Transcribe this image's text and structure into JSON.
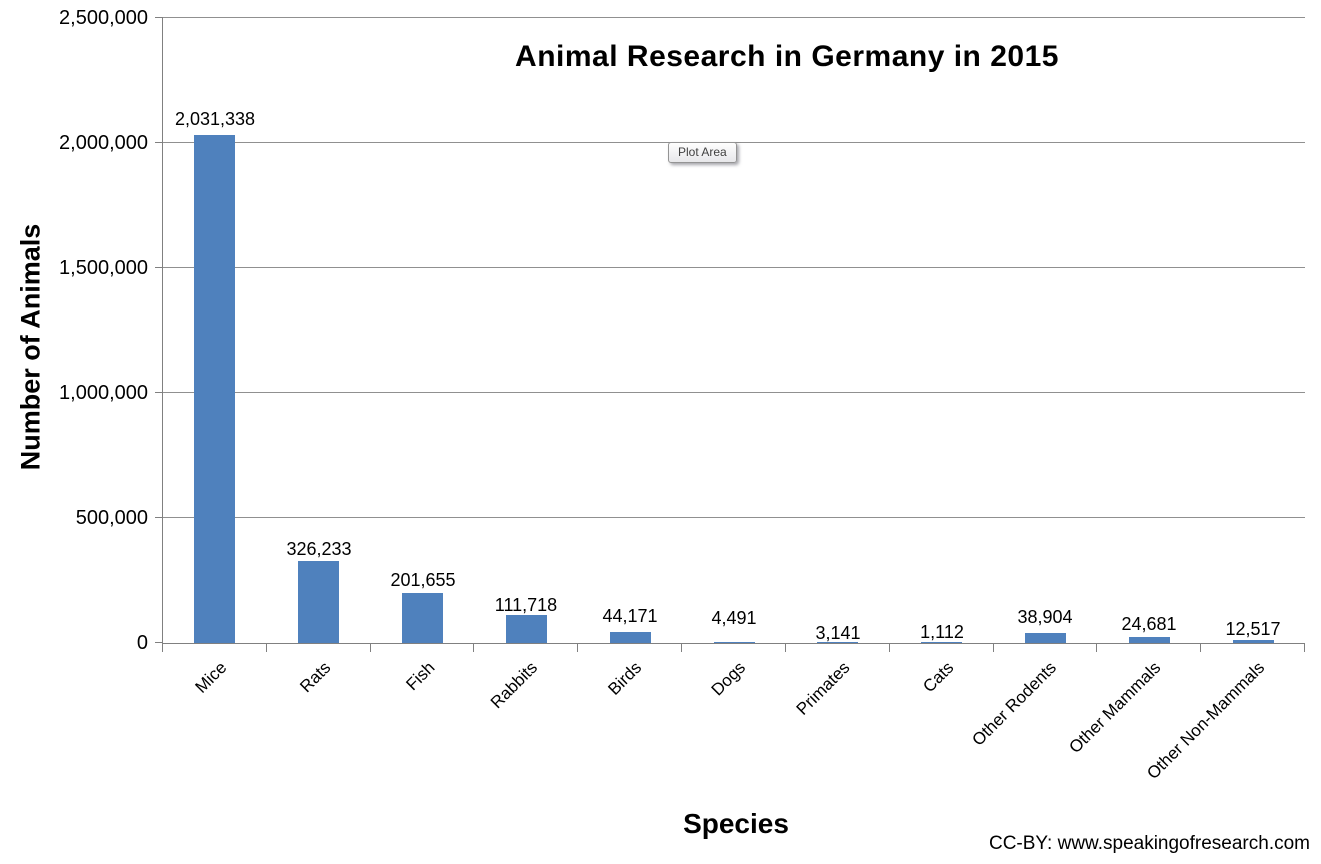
{
  "chart": {
    "plot_area_tooltip": "Plot Area",
    "credit": "CC-BY: www.speakingofresearch.com"
  },
  "chart_data": {
    "type": "bar",
    "title": "Animal Research in Germany in 2015",
    "xlabel": "Species",
    "ylabel": "Number of Animals",
    "categories": [
      "Mice",
      "Rats",
      "Fish",
      "Rabbits",
      "Birds",
      "Dogs",
      "Primates",
      "Cats",
      "Other Rodents",
      "Other Mammals",
      "Other Non-Mammals"
    ],
    "values": [
      2031338,
      326233,
      201655,
      111718,
      44171,
      4491,
      3141,
      1112,
      38904,
      24681,
      12517
    ],
    "value_labels": [
      "2,031,338",
      "326,233",
      "201,655",
      "111,718",
      "44,171",
      "4,491",
      "3,141",
      "1,112",
      "38,904",
      "24,681",
      "12,517"
    ],
    "ylim": [
      0,
      2500000
    ],
    "ytick_interval": 500000,
    "ytick_labels": [
      "0",
      "500,000",
      "1,000,000",
      "1,500,000",
      "2,000,000",
      "2,500,000"
    ],
    "grid": true,
    "legend": "none",
    "bar_color": "#4F81BD",
    "gridline_color": "#909090",
    "axis_color": "#808080",
    "label_dy": [
      0,
      -4,
      -3,
      -6,
      0,
      8,
      -7,
      -6,
      0,
      -3,
      -5
    ]
  }
}
